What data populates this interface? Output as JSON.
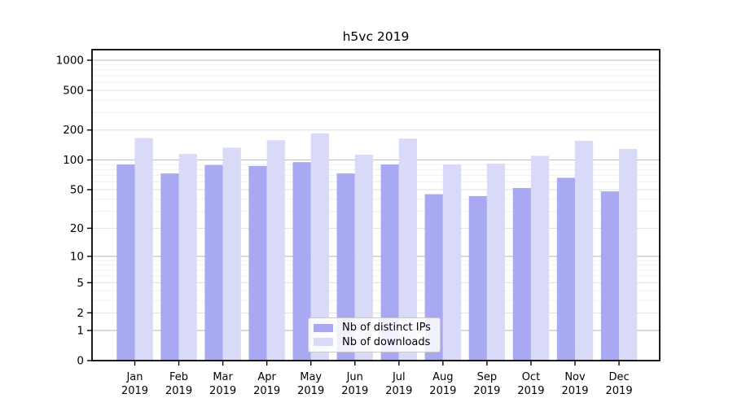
{
  "figure": {
    "title": "h5vc 2019"
  },
  "chart_data": {
    "type": "bar",
    "title": "h5vc 2019",
    "categories": [
      "Jan 2019",
      "Feb 2019",
      "Mar 2019",
      "Apr 2019",
      "May 2019",
      "Jun 2019",
      "Jul 2019",
      "Aug 2019",
      "Sep 2019",
      "Oct 2019",
      "Nov 2019",
      "Dec 2019"
    ],
    "series": [
      {
        "name": "Nb of distinct IPs",
        "color": "#a8a8f3",
        "values": [
          90,
          73,
          89,
          87,
          95,
          73,
          90,
          45,
          43,
          52,
          66,
          48
        ]
      },
      {
        "name": "Nb of downloads",
        "color": "#d9d9f8",
        "values": [
          166,
          115,
          133,
          158,
          185,
          113,
          164,
          90,
          92,
          110,
          156,
          129
        ]
      }
    ],
    "xlabel": "",
    "ylabel": "",
    "yscale": "log1p",
    "y_ticks": [
      0,
      1,
      2,
      5,
      10,
      20,
      50,
      100,
      200,
      500,
      1000
    ],
    "ylim": [
      0,
      1280
    ],
    "grid": "horizontal only: darker lines at decades (1,10,100,1000), light at 2/5-type majors, faint log minors",
    "legend_position": "inside bottom-center"
  },
  "colors": {
    "bar_distinct_ips": "#a8a8f3",
    "bar_downloads": "#d9d9f8",
    "grid_decade": "#bdbdbd",
    "grid_major": "#dfdfdf",
    "grid_minor": "#f0f0f0",
    "axis_frame": "#000000",
    "background": "#ffffff"
  }
}
